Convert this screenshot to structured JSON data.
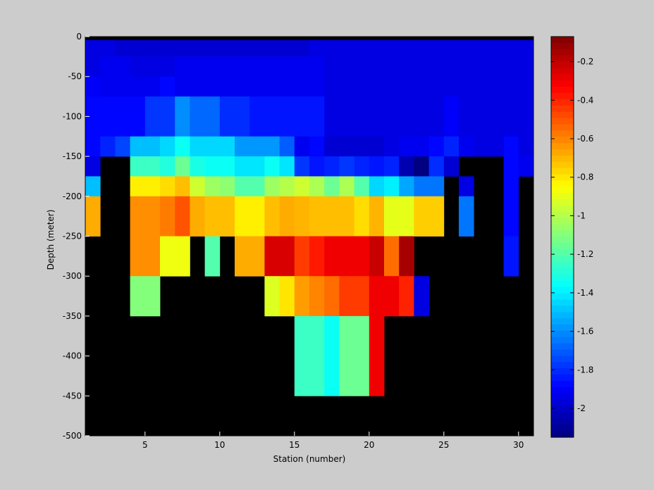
{
  "chart_data": {
    "type": "heatmap",
    "xlabel": "Station (number)",
    "ylabel": "Depth (meter)",
    "xlim": [
      1,
      31
    ],
    "ylim": [
      -500,
      0
    ],
    "xticks": [
      5,
      10,
      15,
      20,
      25,
      30
    ],
    "yticks": [
      0,
      -50,
      -100,
      -150,
      -200,
      -250,
      -300,
      -350,
      -400,
      -450,
      -500
    ],
    "colorbar": {
      "colormap": "jet",
      "clim": [
        -2.15,
        -0.07
      ],
      "ticks": [
        -0.2,
        -0.4,
        -0.6,
        -0.8,
        -1,
        -1.2,
        -1.4,
        -1.6,
        -1.8,
        -2
      ],
      "tick_labels": [
        "-0.2",
        "-0.4",
        "-0.6",
        "-0.8",
        "-1",
        "-1.2",
        "-1.4",
        "-1.6",
        "-1.8",
        "-2"
      ]
    },
    "missing_color": "#000000",
    "stations": [
      1,
      2,
      3,
      4,
      5,
      6,
      7,
      8,
      9,
      10,
      11,
      12,
      13,
      14,
      15,
      16,
      17,
      18,
      19,
      20,
      21,
      22,
      23,
      24,
      25,
      26,
      27,
      28,
      29,
      30,
      31
    ],
    "depths": [
      0,
      -25,
      -50,
      -75,
      -100,
      -125,
      -150,
      -175,
      -200,
      -225,
      -250,
      -275,
      -300,
      -325,
      -350,
      -375,
      -400,
      -425,
      -450,
      -475,
      -500
    ],
    "values": [
      [
        -1.95,
        -1.95,
        -1.98,
        -1.98,
        -1.98,
        -1.98,
        -1.98,
        -1.98,
        -1.98,
        -1.98,
        -1.98,
        -1.98,
        -1.98,
        -1.98,
        -1.98,
        -1.95,
        -1.95,
        -1.95,
        -1.95,
        -1.95,
        -1.95,
        -1.95,
        -1.95,
        -1.95,
        -1.95,
        -1.95,
        -1.95,
        -1.95,
        -1.95,
        -1.95,
        -1.95
      ],
      [
        -1.95,
        -1.92,
        -1.92,
        -1.95,
        -1.95,
        -1.95,
        -1.92,
        -1.92,
        -1.92,
        -1.92,
        -1.92,
        -1.92,
        -1.92,
        -1.92,
        -1.92,
        -1.92,
        -1.95,
        -1.95,
        -1.95,
        -1.95,
        -1.95,
        -1.95,
        -1.95,
        -1.95,
        -1.95,
        -1.95,
        -1.95,
        -1.95,
        -1.95,
        -1.95,
        -1.92
      ],
      [
        -1.9,
        -1.92,
        -1.92,
        -1.92,
        -1.92,
        -1.88,
        -1.92,
        -1.92,
        -1.92,
        -1.92,
        -1.92,
        -1.92,
        -1.92,
        -1.92,
        -1.92,
        -1.92,
        -1.95,
        -1.95,
        -1.95,
        -1.95,
        -1.95,
        -1.95,
        -1.95,
        -1.95,
        -1.95,
        -1.95,
        -1.95,
        -1.95,
        -1.95,
        -1.95,
        -1.92
      ],
      [
        -1.88,
        -1.88,
        -1.88,
        -1.88,
        -1.78,
        -1.78,
        -1.6,
        -1.68,
        -1.68,
        -1.8,
        -1.8,
        -1.85,
        -1.85,
        -1.85,
        -1.85,
        -1.85,
        -1.95,
        -1.95,
        -1.95,
        -1.95,
        -1.95,
        -1.95,
        -1.95,
        -1.95,
        -1.9,
        -1.95,
        -1.95,
        -1.95,
        -1.95,
        -1.95,
        -1.92
      ],
      [
        -1.88,
        -1.88,
        -1.88,
        -1.88,
        -1.78,
        -1.78,
        -1.6,
        -1.68,
        -1.68,
        -1.8,
        -1.8,
        -1.85,
        -1.85,
        -1.85,
        -1.85,
        -1.85,
        -1.95,
        -1.95,
        -1.95,
        -1.95,
        -1.95,
        -1.95,
        -1.95,
        -1.95,
        -1.9,
        -1.95,
        -1.95,
        -1.95,
        -1.95,
        -1.95,
        -1.92
      ],
      [
        -1.88,
        -1.82,
        -1.75,
        -1.5,
        -1.5,
        -1.45,
        -1.35,
        -1.45,
        -1.45,
        -1.45,
        -1.58,
        -1.58,
        -1.58,
        -1.7,
        -1.92,
        -1.88,
        -1.98,
        -1.98,
        -1.98,
        -1.98,
        -1.95,
        -1.92,
        -1.92,
        -1.88,
        -1.82,
        -1.92,
        -1.95,
        -1.95,
        -1.88,
        -1.95,
        -1.92
      ],
      [
        -1.95,
        null,
        null,
        -1.25,
        -1.25,
        -1.3,
        -1.15,
        -1.32,
        -1.35,
        -1.35,
        -1.42,
        -1.42,
        -1.35,
        -1.42,
        -1.78,
        -1.85,
        -1.82,
        -1.78,
        -1.82,
        -1.85,
        -1.82,
        -2.05,
        -2.15,
        -1.8,
        -1.98,
        null,
        null,
        null,
        -1.88,
        -1.92,
        -1.92
      ],
      [
        -1.5,
        null,
        null,
        -0.82,
        -0.82,
        -0.78,
        -0.72,
        -0.95,
        -1.05,
        -1.08,
        -1.2,
        -1.2,
        -1.05,
        -1.0,
        -0.95,
        -1.02,
        -1.15,
        -1.02,
        -1.2,
        -1.45,
        -1.4,
        -1.55,
        -1.65,
        -1.65,
        null,
        -1.95,
        null,
        null,
        -1.88,
        null,
        null
      ],
      [
        -0.68,
        null,
        null,
        -0.62,
        -0.62,
        -0.58,
        -0.5,
        -0.68,
        -0.72,
        -0.72,
        -0.82,
        -0.82,
        -0.72,
        -0.68,
        -0.7,
        -0.72,
        -0.72,
        -0.72,
        -0.78,
        -0.7,
        -0.9,
        -0.9,
        -0.75,
        -0.75,
        null,
        -1.65,
        null,
        null,
        -1.88,
        null,
        null
      ],
      [
        -0.68,
        null,
        null,
        -0.62,
        -0.62,
        -0.58,
        -0.5,
        -0.68,
        -0.72,
        -0.72,
        -0.82,
        -0.82,
        -0.72,
        -0.68,
        -0.7,
        -0.72,
        -0.72,
        -0.72,
        -0.78,
        -0.7,
        -0.9,
        -0.9,
        -0.75,
        -0.75,
        null,
        -1.65,
        null,
        null,
        -1.88,
        null,
        null
      ],
      [
        null,
        null,
        null,
        -0.62,
        -0.62,
        -0.88,
        -0.88,
        null,
        -1.2,
        null,
        -0.68,
        -0.68,
        -0.25,
        -0.25,
        -0.45,
        -0.38,
        -0.3,
        -0.3,
        -0.3,
        -0.22,
        -0.55,
        -0.15,
        null,
        null,
        null,
        null,
        null,
        null,
        -1.85,
        null,
        null
      ],
      [
        null,
        null,
        null,
        -0.62,
        -0.62,
        -0.88,
        -0.88,
        null,
        -1.2,
        null,
        -0.68,
        -0.68,
        -0.25,
        -0.25,
        -0.45,
        -0.38,
        -0.3,
        -0.3,
        -0.3,
        -0.22,
        -0.55,
        -0.15,
        null,
        null,
        null,
        null,
        null,
        null,
        -1.85,
        null,
        null
      ],
      [
        null,
        null,
        null,
        -1.1,
        -1.1,
        null,
        null,
        null,
        null,
        null,
        null,
        null,
        -0.92,
        -0.8,
        -0.65,
        -0.6,
        -0.55,
        -0.45,
        -0.45,
        -0.3,
        -0.3,
        -0.4,
        -1.95,
        null,
        null,
        null,
        null,
        null,
        null,
        null,
        null
      ],
      [
        null,
        null,
        null,
        -1.1,
        -1.1,
        null,
        null,
        null,
        null,
        null,
        null,
        null,
        -0.92,
        -0.8,
        -0.65,
        -0.6,
        -0.55,
        -0.45,
        -0.45,
        -0.3,
        -0.3,
        -0.4,
        -1.95,
        null,
        null,
        null,
        null,
        null,
        null,
        null,
        null
      ],
      [
        null,
        null,
        null,
        null,
        null,
        null,
        null,
        null,
        null,
        null,
        null,
        null,
        null,
        null,
        -1.25,
        -1.25,
        -1.35,
        -1.15,
        -1.15,
        -0.3,
        null,
        null,
        null,
        null,
        null,
        null,
        null,
        null,
        null,
        null,
        null
      ],
      [
        null,
        null,
        null,
        null,
        null,
        null,
        null,
        null,
        null,
        null,
        null,
        null,
        null,
        null,
        -1.25,
        -1.25,
        -1.35,
        -1.15,
        -1.15,
        -0.3,
        null,
        null,
        null,
        null,
        null,
        null,
        null,
        null,
        null,
        null,
        null
      ],
      [
        null,
        null,
        null,
        null,
        null,
        null,
        null,
        null,
        null,
        null,
        null,
        null,
        null,
        null,
        -1.25,
        -1.25,
        -1.35,
        -1.15,
        -1.15,
        -0.3,
        null,
        null,
        null,
        null,
        null,
        null,
        null,
        null,
        null,
        null,
        null
      ],
      [
        null,
        null,
        null,
        null,
        null,
        null,
        null,
        null,
        null,
        null,
        null,
        null,
        null,
        null,
        -1.25,
        -1.25,
        -1.35,
        -1.15,
        -1.15,
        -0.3,
        null,
        null,
        null,
        null,
        null,
        null,
        null,
        null,
        null,
        null,
        null
      ],
      [
        null,
        null,
        null,
        null,
        null,
        null,
        null,
        null,
        null,
        null,
        null,
        null,
        null,
        null,
        null,
        null,
        null,
        null,
        null,
        null,
        null,
        null,
        null,
        null,
        null,
        null,
        null,
        null,
        null,
        null,
        null
      ],
      [
        null,
        null,
        null,
        null,
        null,
        null,
        null,
        null,
        null,
        null,
        null,
        null,
        null,
        null,
        null,
        null,
        null,
        null,
        null,
        null,
        null,
        null,
        null,
        null,
        null,
        null,
        null,
        null,
        null,
        null,
        null
      ],
      [
        null,
        null,
        null,
        null,
        null,
        null,
        null,
        null,
        null,
        null,
        null,
        null,
        null,
        null,
        null,
        null,
        null,
        null,
        null,
        null,
        null,
        null,
        null,
        null,
        null,
        null,
        null,
        null,
        null,
        null,
        null
      ]
    ]
  }
}
